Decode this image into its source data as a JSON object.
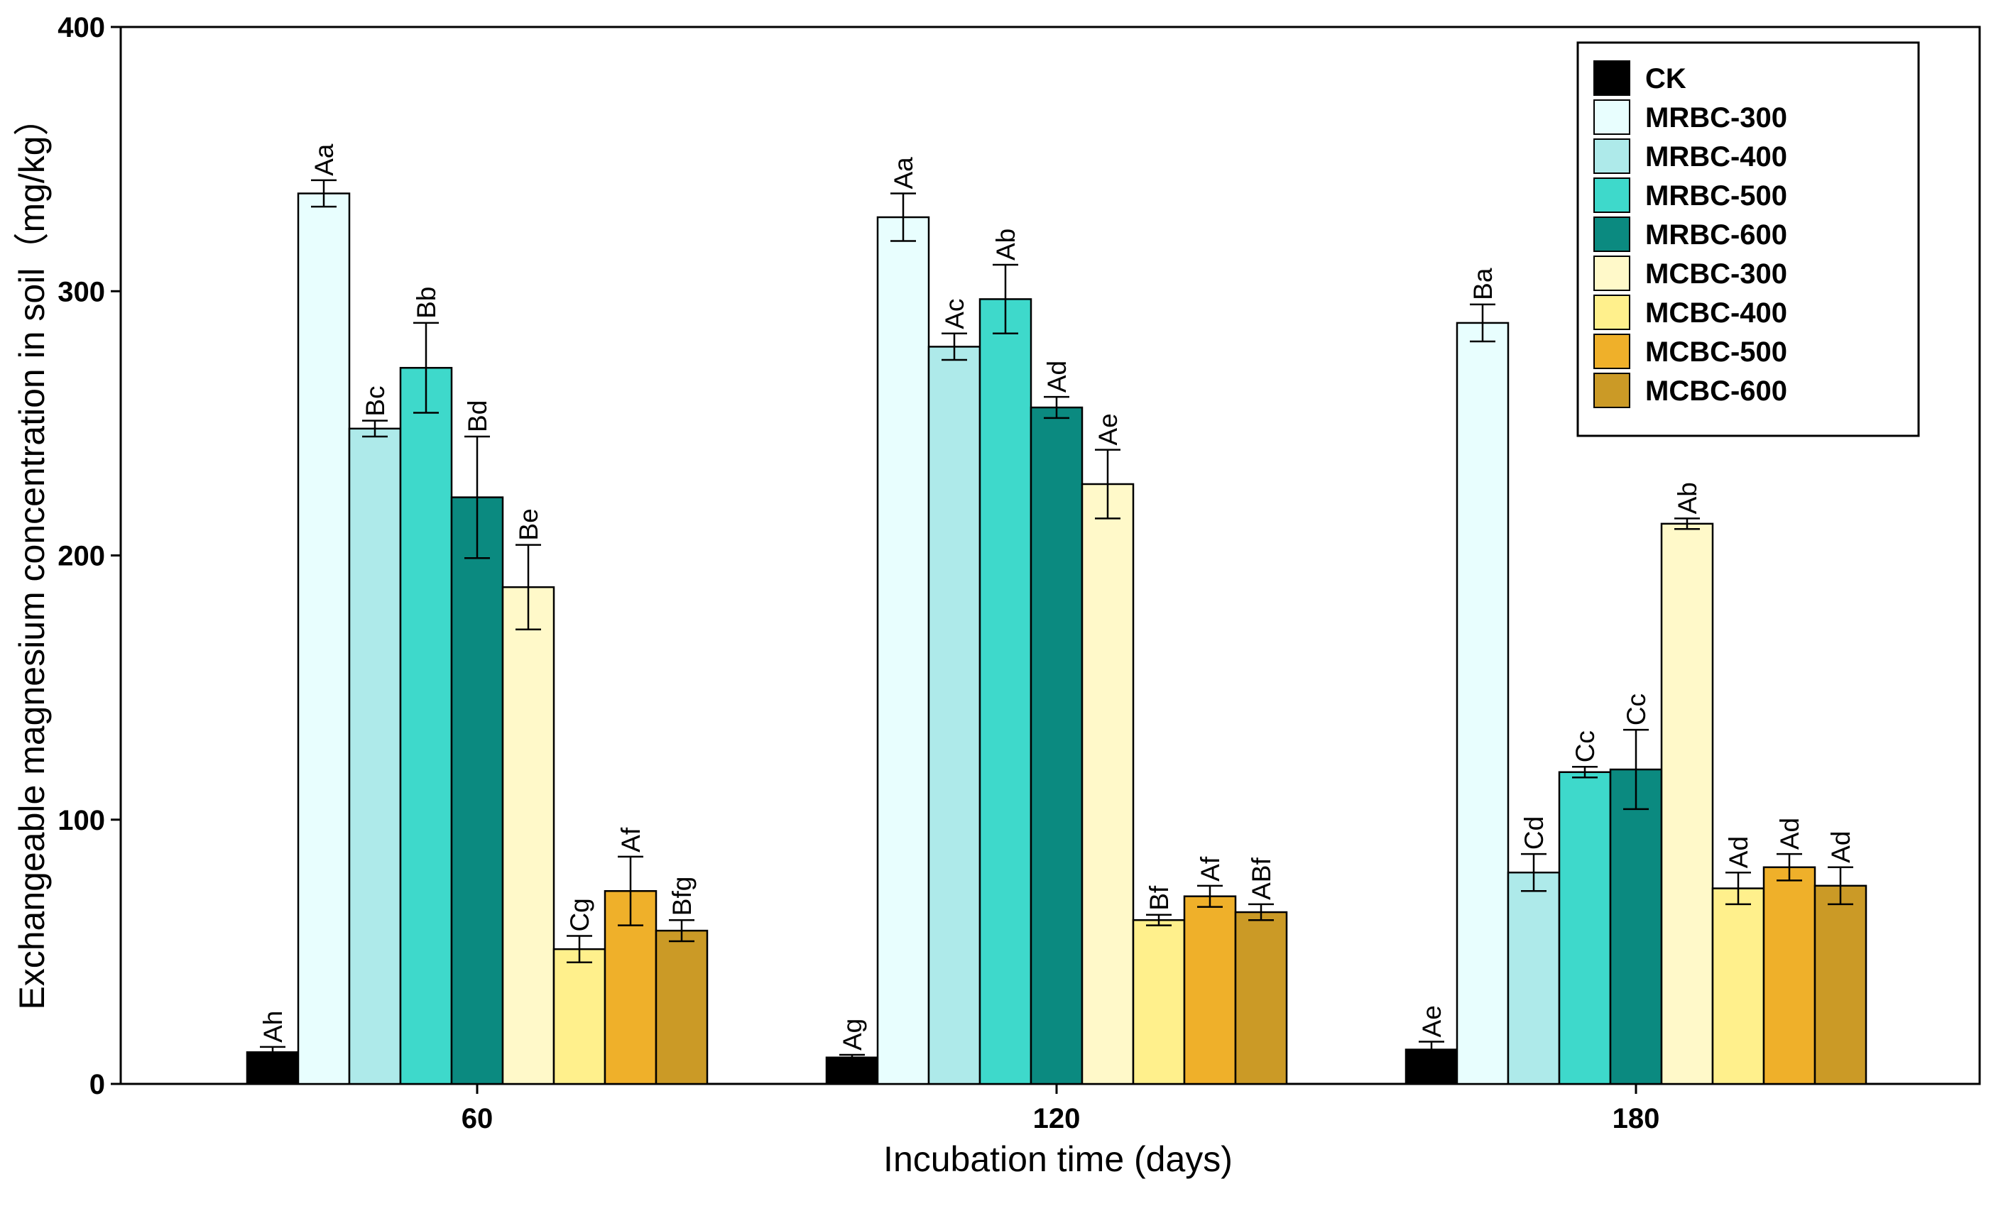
{
  "chart_data": {
    "type": "bar",
    "xlabel": "Incubation time (days)",
    "ylabel": "Exchangeable magnesium concentration in soil（mg/kg）",
    "categories": [
      "60",
      "120",
      "180"
    ],
    "ylim": [
      0,
      400
    ],
    "yticks": [
      "0",
      "100",
      "200",
      "300",
      "400"
    ],
    "grid": false,
    "legend_position": "top-right",
    "series": [
      {
        "name": "CK",
        "color": "#000000",
        "values": [
          12,
          10,
          13
        ],
        "errors": [
          2,
          1,
          3
        ],
        "labels": [
          "Ah",
          "Ag",
          "Ae"
        ]
      },
      {
        "name": "MRBC-300",
        "color": "#E8FEFE",
        "values": [
          337,
          328,
          288
        ],
        "errors": [
          5,
          9,
          7
        ],
        "labels": [
          "Aa",
          "Aa",
          "Ba"
        ]
      },
      {
        "name": "MRBC-400",
        "color": "#AEEAEA",
        "values": [
          248,
          279,
          80
        ],
        "errors": [
          3,
          5,
          7
        ],
        "labels": [
          "Bc",
          "Ac",
          "Cd"
        ]
      },
      {
        "name": "MRBC-500",
        "color": "#3ED9CB",
        "values": [
          271,
          297,
          118
        ],
        "errors": [
          17,
          13,
          2
        ],
        "labels": [
          "Bb",
          "Ab",
          "Cc"
        ]
      },
      {
        "name": "MRBC-600",
        "color": "#0B8A80",
        "values": [
          222,
          256,
          119
        ],
        "errors": [
          23,
          4,
          15
        ],
        "labels": [
          "Bd",
          "Ad",
          "Cc"
        ]
      },
      {
        "name": "MCBC-300",
        "color": "#FFF9C9",
        "values": [
          188,
          227,
          212
        ],
        "errors": [
          16,
          13,
          2
        ],
        "labels": [
          "Be",
          "Ae",
          "Ab"
        ]
      },
      {
        "name": "MCBC-400",
        "color": "#FFF08C",
        "values": [
          51,
          62,
          74
        ],
        "errors": [
          5,
          2,
          6
        ],
        "labels": [
          "Cg",
          "Bf",
          "Ad"
        ]
      },
      {
        "name": "MCBC-500",
        "color": "#EFB02A",
        "values": [
          73,
          71,
          82
        ],
        "errors": [
          13,
          4,
          5
        ],
        "labels": [
          "Af",
          "Af",
          "Ad"
        ]
      },
      {
        "name": "MCBC-600",
        "color": "#CB9A26",
        "values": [
          58,
          65,
          75
        ],
        "errors": [
          4,
          3,
          7
        ],
        "labels": [
          "Bfg",
          "ABf",
          "Ad"
        ]
      }
    ]
  }
}
